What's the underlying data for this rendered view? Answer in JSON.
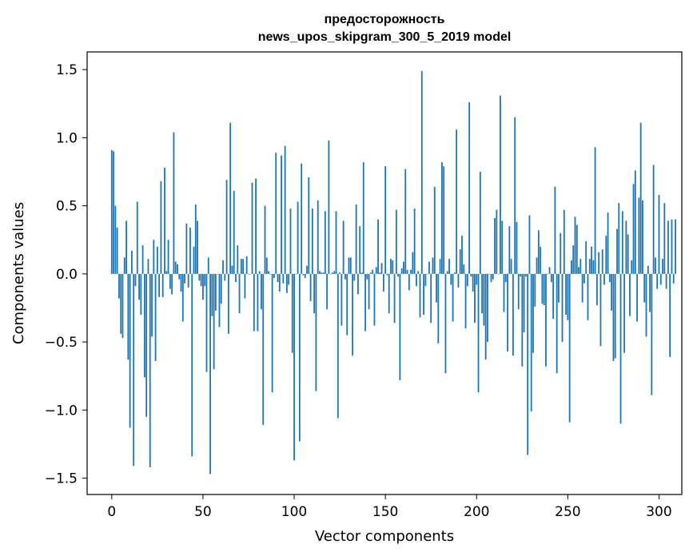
{
  "chart_data": {
    "type": "bar",
    "title": [
      "предосторожность",
      "news_upos_skipgram_300_5_2019 model"
    ],
    "xlabel": "Vector components",
    "ylabel": "Components values",
    "xlim": [
      -13.5,
      312.5
    ],
    "ylim": [
      -1.62,
      1.63
    ],
    "xticks": [
      0,
      50,
      100,
      150,
      200,
      250,
      300
    ],
    "xtick_labels": [
      "0",
      "50",
      "100",
      "150",
      "200",
      "250",
      "300"
    ],
    "yticks": [
      -1.5,
      -1.0,
      -0.5,
      0.0,
      0.5,
      1.0,
      1.5
    ],
    "ytick_labels": [
      "−1.5",
      "−1.0",
      "−0.5",
      "0.0",
      "0.5",
      "1.0",
      "1.5"
    ],
    "bar_color": "#1f77b4",
    "values": [
      0.91,
      0.9,
      0.5,
      0.34,
      -0.18,
      -0.44,
      -0.47,
      0.12,
      0.39,
      -0.63,
      -1.13,
      0.17,
      -1.41,
      -0.09,
      0.53,
      -0.19,
      -0.3,
      0.21,
      -0.76,
      -1.05,
      0.11,
      -1.42,
      -0.46,
      0.25,
      -0.64,
      0.2,
      -0.17,
      0.68,
      -0.17,
      0.78,
      0.02,
      0.25,
      -0.11,
      -0.15,
      1.04,
      0.09,
      0.07,
      -0.04,
      -0.13,
      -0.35,
      -0.07,
      0.37,
      -0.1,
      0.34,
      -1.34,
      0.2,
      0.51,
      0.39,
      -0.05,
      -0.09,
      -0.19,
      -0.09,
      -0.72,
      0.12,
      -1.47,
      -0.31,
      -0.7,
      -0.27,
      0.0,
      -0.39,
      -0.22,
      0.1,
      -0.05,
      0.69,
      -0.44,
      1.11,
      0.06,
      0.61,
      -0.06,
      0.21,
      -0.29,
      0.11,
      0.11,
      -0.18,
      0.13,
      0.0,
      0.0,
      0.67,
      -0.42,
      0.7,
      -0.42,
      0.02,
      -0.26,
      -1.11,
      0.5,
      0.12,
      0.02,
      0.0,
      -0.87,
      -0.03,
      0.89,
      -0.06,
      -0.13,
      0.87,
      -0.07,
      0.94,
      -0.14,
      -0.08,
      0.48,
      -0.58,
      -1.37,
      0.0,
      0.53,
      -1.23,
      0.81,
      -0.01,
      -0.03,
      0.06,
      0.71,
      -0.2,
      0.48,
      -0.29,
      -0.86,
      0.54,
      0.02,
      0.01,
      0.01,
      0.46,
      -0.26,
      0.98,
      0.0,
      0.01,
      0.02,
      0.46,
      -1.06,
      0.01,
      -0.38,
      0.39,
      -0.04,
      -0.45,
      0.12,
      0.12,
      -0.6,
      -0.05,
      0.51,
      -0.15,
      0.35,
      0.01,
      0.82,
      -0.42,
      -0.04,
      -0.26,
      0.01,
      0.03,
      -0.38,
      0.05,
      0.4,
      0.01,
      0.08,
      -0.13,
      0.79,
      -0.01,
      -0.29,
      0.11,
      0.1,
      -0.36,
      0.47,
      -0.02,
      -0.78,
      0.04,
      0.09,
      0.77,
      0.03,
      -0.12,
      0.03,
      0.16,
      0.48,
      -0.09,
      0.02,
      -0.32,
      1.49,
      -0.3,
      -0.09,
      0.0,
      0.09,
      -0.36,
      0.12,
      0.64,
      -0.21,
      -0.51,
      0.11,
      0.82,
      0.79,
      -0.73,
      0.02,
      0.11,
      -0.08,
      -0.35,
      0.01,
      1.06,
      -0.1,
      0.18,
      0.28,
      0.07,
      -0.4,
      -0.09,
      1.26,
      -0.02,
      -0.13,
      -0.36,
      -0.08,
      -0.87,
      0.75,
      -0.29,
      -0.38,
      -0.63,
      -0.5,
      0.0,
      -0.06,
      -0.04,
      0.41,
      0.47,
      0.0,
      1.31,
      0.39,
      -0.28,
      -0.06,
      -0.57,
      0.35,
      0.11,
      -0.6,
      1.15,
      0.38,
      -0.26,
      -0.02,
      -0.68,
      -0.43,
      -0.02,
      -1.33,
      0.43,
      -1.01,
      -0.58,
      -0.24,
      0.12,
      0.32,
      0.2,
      -0.22,
      -0.23,
      -0.68,
      0.0,
      0.05,
      -0.06,
      -0.33,
      0.64,
      -0.73,
      -0.21,
      0.3,
      -0.5,
      0.47,
      -0.3,
      -0.34,
      -1.09,
      0.1,
      0.21,
      0.42,
      0.36,
      0.05,
      0.11,
      -0.21,
      -0.07,
      0.24,
      -0.34,
      0.11,
      0.2,
      0.1,
      0.93,
      -0.23,
      0.16,
      -0.53,
      0.18,
      -0.08,
      0.28,
      0.45,
      -0.06,
      -0.27,
      -0.64,
      -0.62,
      0.33,
      0.52,
      -1.1,
      0.46,
      -0.58,
      0.39,
      0.29,
      -0.31,
      0.1,
      0.66,
      0.76,
      -0.35,
      0.56,
      1.11,
      0.54,
      -0.21,
      -0.46,
      0.06,
      -0.28,
      -0.89,
      0.8,
      0.12,
      -0.11,
      0.58,
      -0.08,
      0.11,
      0.52,
      -0.11,
      0.39,
      -0.61,
      0.4,
      -0.07,
      0.4
    ]
  }
}
